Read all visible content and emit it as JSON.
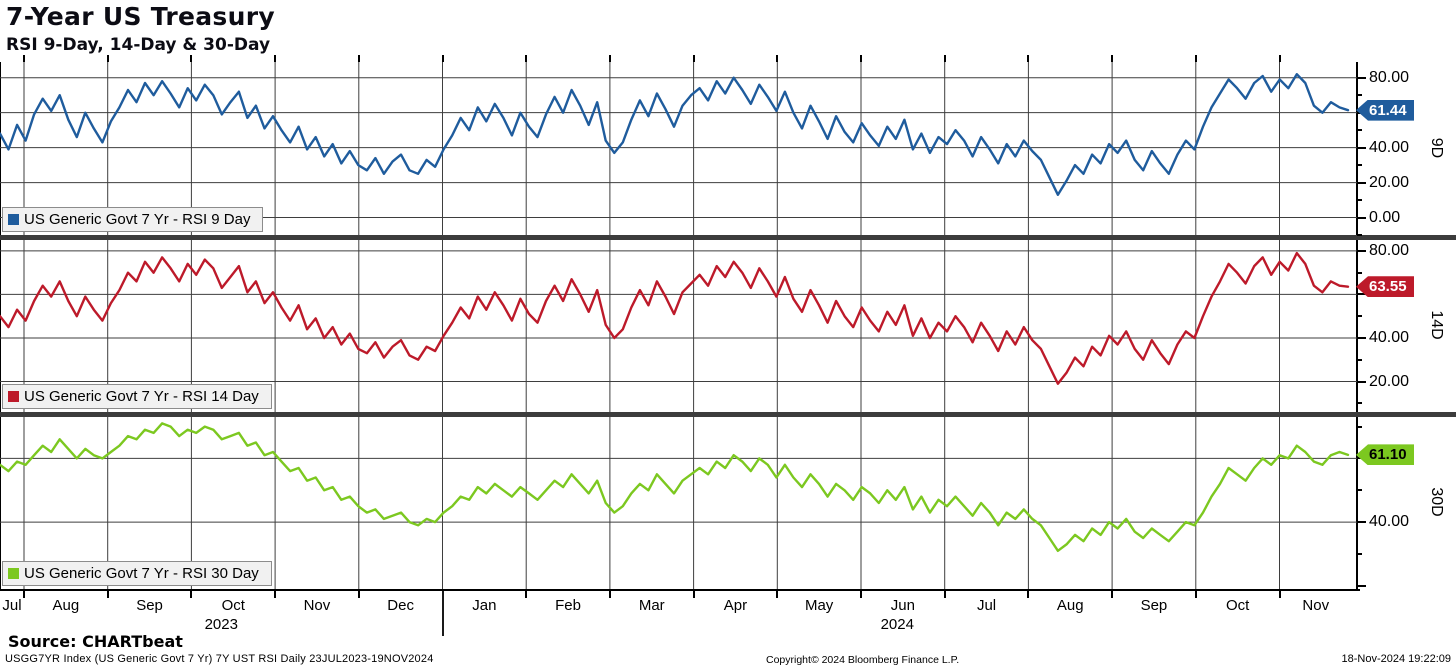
{
  "header": {
    "title": "7-Year US Treasury",
    "subtitle": "RSI 9-Day, 14-Day & 30-Day"
  },
  "footer": {
    "source": "Source: CHARTbeat",
    "terminal_line": "USGG7YR Index (US Generic Govt 7 Yr) 7Y UST RSI  Daily 23JUL2023-19NOV2024",
    "copyright": "Copyright© 2024 Bloomberg Finance L.P.",
    "timestamp": "18-Nov-2024 19:22:09"
  },
  "colors": {
    "grid": "#3e3e3e",
    "axis": "#000000",
    "separator": "#3c3c3c",
    "legend_bg": "#f1f1f1",
    "rsi9": "#1f5c9d",
    "rsi14": "#bd1a2a",
    "rsi30": "#7cc820"
  },
  "chart_data": {
    "type": "line",
    "title": "7-Year US Treasury",
    "subtitle": "RSI 9-Day, 14-Day & 30-Day",
    "x_range_label": "Daily 23JUL2023-19NOV2024",
    "x_ticks": [
      "Jul",
      "Aug",
      "Sep",
      "Oct",
      "Nov",
      "Dec",
      "Jan",
      "Feb",
      "Mar",
      "Apr",
      "May",
      "Jun",
      "Jul",
      "Aug",
      "Sep",
      "Oct",
      "Nov"
    ],
    "year_labels": [
      "2023",
      "2024"
    ],
    "grid": true,
    "legend_position": "bottom-left-inside",
    "panels": [
      {
        "name": "9D",
        "series": "US Generic Govt 7 Yr - RSI 9 Day",
        "color": "#1f5c9d",
        "badge_text_color": "#ffffff",
        "last_value": 61.44,
        "last_label": "61.44",
        "ylim": [
          -10,
          89
        ],
        "gridlines": [
          0,
          20,
          40,
          60,
          80
        ],
        "labeled_ticks": [
          {
            "v": 80,
            "t": "80.00"
          },
          {
            "v": 40,
            "t": "40.00"
          },
          {
            "v": 20,
            "t": "20.00"
          },
          {
            "v": 0,
            "t": "0.00"
          }
        ],
        "values": [
          48,
          39,
          53,
          44,
          59,
          68,
          61,
          70,
          56,
          46,
          60,
          51,
          43,
          55,
          63,
          73,
          66,
          77,
          70,
          78,
          71,
          63,
          74,
          67,
          76,
          70,
          59,
          66,
          72,
          57,
          64,
          51,
          58,
          50,
          43,
          52,
          39,
          46,
          35,
          42,
          31,
          38,
          30,
          27,
          34,
          25,
          32,
          36,
          27,
          25,
          33,
          29,
          39,
          47,
          57,
          50,
          63,
          55,
          65,
          57,
          47,
          60,
          52,
          46,
          59,
          69,
          60,
          73,
          64,
          53,
          66,
          44,
          37,
          43,
          56,
          67,
          58,
          71,
          62,
          52,
          64,
          70,
          74,
          67,
          78,
          71,
          80,
          73,
          65,
          76,
          69,
          61,
          72,
          60,
          51,
          64,
          55,
          45,
          58,
          49,
          43,
          54,
          47,
          41,
          52,
          45,
          56,
          39,
          48,
          37,
          46,
          42,
          50,
          44,
          35,
          46,
          39,
          31,
          42,
          35,
          44,
          38,
          33,
          23,
          13,
          21,
          30,
          25,
          36,
          31,
          42,
          37,
          44,
          33,
          27,
          38,
          31,
          25,
          36,
          44,
          39,
          52,
          63,
          71,
          79,
          74,
          68,
          77,
          81,
          72,
          79,
          74,
          82,
          77,
          64,
          60,
          66,
          63,
          61.44
        ]
      },
      {
        "name": "14D",
        "series": "US Generic Govt 7 Yr - RSI 14 Day",
        "color": "#bd1a2a",
        "badge_text_color": "#ffffff",
        "last_value": 63.55,
        "last_label": "63.55",
        "ylim": [
          6,
          85
        ],
        "gridlines": [
          20,
          40,
          60,
          80
        ],
        "labeled_ticks": [
          {
            "v": 80,
            "t": "80.00"
          },
          {
            "v": 40,
            "t": "40.00"
          },
          {
            "v": 20,
            "t": "20.00"
          }
        ],
        "values": [
          50,
          45,
          53,
          48,
          57,
          64,
          59,
          66,
          57,
          50,
          59,
          53,
          48,
          56,
          62,
          70,
          66,
          75,
          70,
          77,
          72,
          66,
          74,
          69,
          76,
          72,
          63,
          68,
          73,
          61,
          66,
          56,
          61,
          54,
          48,
          55,
          44,
          49,
          40,
          45,
          37,
          42,
          35,
          33,
          38,
          31,
          36,
          39,
          32,
          30,
          36,
          34,
          41,
          47,
          54,
          49,
          59,
          53,
          61,
          55,
          48,
          58,
          51,
          47,
          57,
          64,
          57,
          67,
          60,
          52,
          62,
          46,
          40,
          44,
          54,
          62,
          55,
          66,
          59,
          51,
          61,
          65,
          69,
          64,
          73,
          68,
          75,
          70,
          63,
          72,
          66,
          59,
          68,
          58,
          52,
          62,
          55,
          47,
          57,
          50,
          45,
          54,
          48,
          43,
          52,
          46,
          55,
          41,
          49,
          40,
          47,
          43,
          50,
          45,
          38,
          47,
          41,
          34,
          43,
          37,
          45,
          39,
          35,
          27,
          19,
          24,
          31,
          27,
          36,
          32,
          41,
          37,
          43,
          35,
          30,
          39,
          33,
          28,
          37,
          43,
          40,
          50,
          59,
          66,
          74,
          70,
          65,
          73,
          77,
          69,
          75,
          71,
          79,
          74,
          64,
          61,
          66,
          64,
          63.55
        ]
      },
      {
        "name": "30D",
        "series": "US Generic Govt 7 Yr - RSI 30 Day",
        "color": "#7cc820",
        "badge_text_color": "#000000",
        "last_value": 61.1,
        "last_label": "61.10",
        "ylim": [
          19,
          73
        ],
        "gridlines": [
          40,
          60
        ],
        "labeled_ticks": [
          {
            "v": 40,
            "t": "40.00"
          }
        ],
        "values": [
          58,
          56,
          59,
          58,
          61,
          64,
          62,
          66,
          63,
          60,
          63,
          61,
          60,
          62,
          64,
          67,
          66,
          69,
          68,
          71,
          70,
          67,
          69,
          68,
          70,
          69,
          66,
          67,
          68,
          64,
          65,
          61,
          62,
          59,
          56,
          57,
          53,
          54,
          50,
          51,
          47,
          48,
          45,
          43,
          44,
          41,
          42,
          43,
          40,
          39,
          41,
          40,
          43,
          45,
          48,
          47,
          51,
          49,
          52,
          50,
          48,
          51,
          49,
          47,
          50,
          53,
          51,
          55,
          52,
          49,
          53,
          46,
          43,
          45,
          49,
          52,
          50,
          55,
          52,
          49,
          53,
          55,
          57,
          55,
          59,
          57,
          61,
          59,
          56,
          60,
          58,
          54,
          58,
          54,
          51,
          55,
          52,
          48,
          52,
          50,
          47,
          51,
          49,
          46,
          50,
          47,
          51,
          44,
          48,
          43,
          47,
          45,
          48,
          45,
          42,
          46,
          43,
          39,
          43,
          41,
          44,
          41,
          39,
          35,
          31,
          33,
          36,
          34,
          38,
          36,
          40,
          38,
          41,
          37,
          35,
          38,
          36,
          34,
          37,
          40,
          39,
          43,
          48,
          52,
          57,
          55,
          53,
          57,
          60,
          58,
          61,
          60,
          64,
          62,
          59,
          58,
          61,
          62,
          61.1
        ]
      }
    ]
  }
}
